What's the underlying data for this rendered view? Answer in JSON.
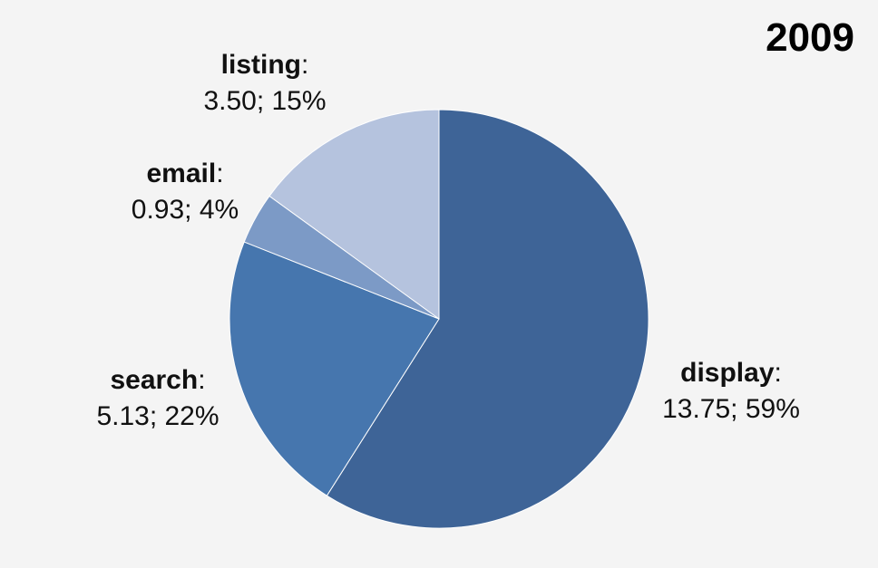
{
  "chart_data": {
    "type": "pie",
    "title": "2009",
    "categories": [
      "display",
      "search",
      "email",
      "listing"
    ],
    "values": [
      13.75,
      5.13,
      0.93,
      3.5
    ],
    "percent_labels": [
      "59%",
      "22%",
      "4%",
      "15%"
    ],
    "value_labels": [
      "13.75",
      "5.13",
      "0.93",
      "3.50"
    ],
    "colors": [
      "#3e6497",
      "#4676ae",
      "#7c9ac6",
      "#b5c3de"
    ],
    "start_angle_deg": 0,
    "direction": "clockwise",
    "legend": "none"
  },
  "labels": [
    {
      "category": "display",
      "text": "13.75; 59%"
    },
    {
      "category": "search",
      "text": "5.13; 22%"
    },
    {
      "category": "email",
      "text": "0.93; 4%"
    },
    {
      "category": "listing",
      "text": "3.50; 15%"
    }
  ],
  "punct": {
    "colon": ":"
  }
}
